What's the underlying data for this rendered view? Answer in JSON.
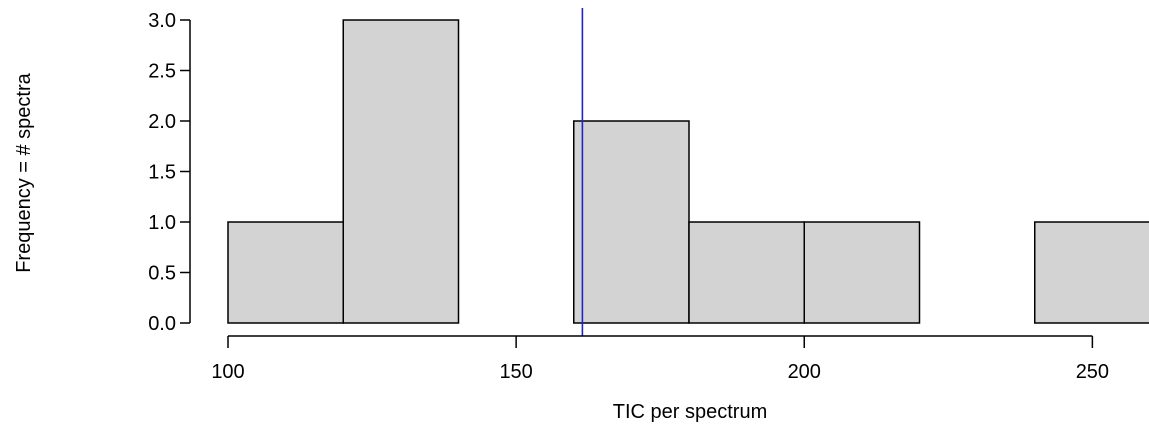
{
  "chart_data": {
    "type": "bar",
    "subtype": "histogram",
    "title": "",
    "xlabel": "TIC per spectrum",
    "ylabel": "Frequency = # spectra",
    "bins": [
      {
        "start": 100,
        "end": 120,
        "count": 1
      },
      {
        "start": 120,
        "end": 140,
        "count": 3
      },
      {
        "start": 140,
        "end": 160,
        "count": 0
      },
      {
        "start": 160,
        "end": 180,
        "count": 2
      },
      {
        "start": 180,
        "end": 200,
        "count": 1
      },
      {
        "start": 200,
        "end": 220,
        "count": 1
      },
      {
        "start": 220,
        "end": 240,
        "count": 0
      },
      {
        "start": 240,
        "end": 260,
        "count": 1
      }
    ],
    "xticks": [
      100,
      150,
      200,
      250
    ],
    "xtick_labels": [
      "100",
      "150",
      "200",
      "250"
    ],
    "yticks": [
      0.0,
      0.5,
      1.0,
      1.5,
      2.0,
      2.5,
      3.0
    ],
    "ytick_labels": [
      "0.0",
      "0.5",
      "1.0",
      "1.5",
      "2.0",
      "2.5",
      "3.0"
    ],
    "xlim": [
      100,
      260
    ],
    "ylim": [
      0,
      3
    ],
    "reference_line": {
      "x": 161.5,
      "color": "#2222cc"
    },
    "bar_fill": "#d3d3d3",
    "bar_stroke": "#000000",
    "grid": false,
    "legend": "none"
  }
}
